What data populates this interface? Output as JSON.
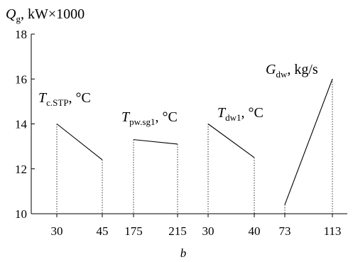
{
  "chart_data": {
    "type": "line",
    "ylabel": {
      "symbol": "Q",
      "sub": "g",
      "unit": ", kW×1000"
    },
    "xlabel": "b",
    "ylim": [
      10,
      18
    ],
    "yticks": [
      10,
      12,
      14,
      16,
      18
    ],
    "grid": false,
    "panels": [
      {
        "label": {
          "symbol": "T",
          "sub": "c.STP",
          "unit": ", °C"
        },
        "xticks": [
          "30",
          "45"
        ],
        "x": [
          30,
          45
        ],
        "y": [
          14.0,
          12.4
        ]
      },
      {
        "label": {
          "symbol": "T",
          "sub": "pw.sg1",
          "unit": ", °C"
        },
        "xticks": [
          "175",
          "215"
        ],
        "x": [
          175,
          215
        ],
        "y": [
          13.3,
          13.1
        ]
      },
      {
        "label": {
          "symbol": "T",
          "sub": "dw1",
          "unit": ", °C"
        },
        "xticks": [
          "30",
          "40"
        ],
        "x": [
          30,
          40
        ],
        "y": [
          14.0,
          12.5
        ]
      },
      {
        "label": {
          "symbol": "G",
          "sub": "dw",
          "unit": ", kg/s"
        },
        "xticks": [
          "73",
          "113"
        ],
        "x": [
          73,
          113
        ],
        "y": [
          10.4,
          16.0
        ]
      }
    ]
  }
}
